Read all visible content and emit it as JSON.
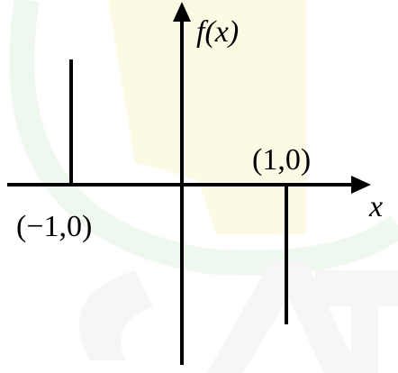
{
  "labels": {
    "y_axis": "f(x)",
    "x_axis": "x",
    "left_point": "(−1,0)",
    "right_point": "(1,0)"
  }
}
